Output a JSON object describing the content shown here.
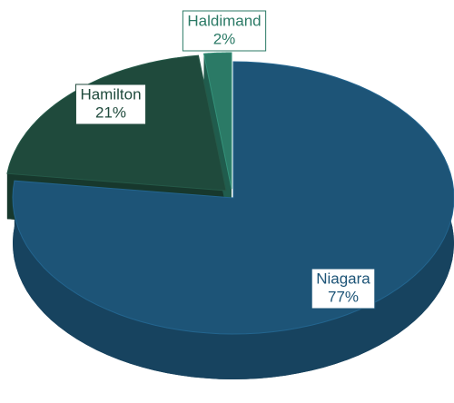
{
  "chart_data": {
    "type": "pie",
    "categories": [
      "Niagara",
      "Hamilton",
      "Haldimand"
    ],
    "values": [
      77,
      21,
      2
    ],
    "value_labels": [
      "77%",
      "21%",
      "2%"
    ],
    "colors": [
      "#1d5477",
      "#1f4a3c",
      "#2b7a66"
    ]
  }
}
